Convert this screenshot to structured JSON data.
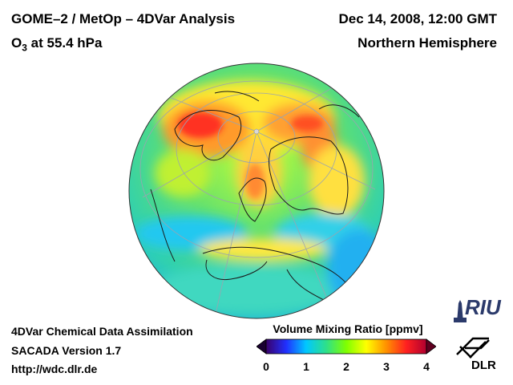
{
  "header": {
    "title_left": "GOME–2 / MetOp – 4DVar Analysis",
    "species": "O",
    "species_sub": "3",
    "level": " at 55.4 hPa",
    "date": "Dec 14, 2008, 12:00 GMT",
    "region": "Northern Hemisphere"
  },
  "footer": {
    "line1": "4DVar Chemical Data Assimilation",
    "line2": "SACADA Version 1.7",
    "line3": "http://wdc.dlr.de"
  },
  "colorbar": {
    "title": "Volume Mixing Ratio [ppmv]",
    "ticks": [
      "0",
      "1",
      "2",
      "3",
      "4"
    ],
    "min": 0,
    "max": 4,
    "colors": [
      "#3a006a",
      "#2030ff",
      "#00c8ff",
      "#2ee08a",
      "#7fff00",
      "#ffff00",
      "#ff9000",
      "#ff2020",
      "#b00030"
    ]
  },
  "logos": {
    "riu": "RIU",
    "dlr": "DLR"
  }
}
